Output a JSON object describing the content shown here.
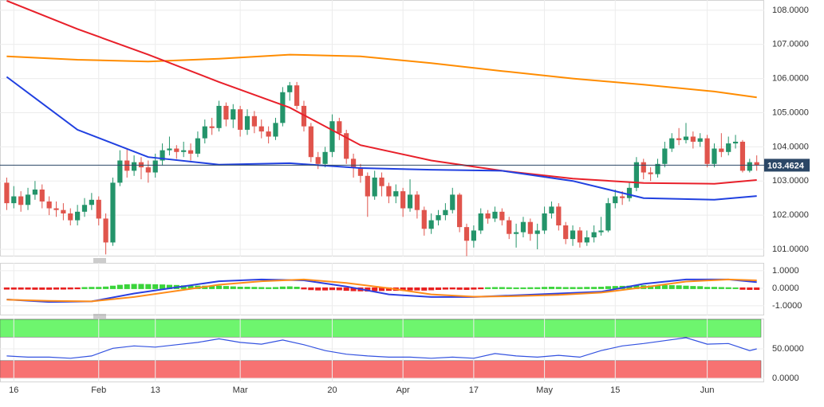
{
  "chart_data": [
    {
      "type": "candlestick",
      "xlim": [
        -0.95,
        107.05
      ],
      "xticks": [
        {
          "value": 1,
          "label": "16"
        },
        {
          "value": 13,
          "label": "Feb"
        },
        {
          "value": 21,
          "label": "13"
        },
        {
          "value": 33,
          "label": "Mar"
        },
        {
          "value": 46,
          "label": "20"
        },
        {
          "value": 56,
          "label": "Apr"
        },
        {
          "value": 66,
          "label": "17"
        },
        {
          "value": 76,
          "label": "May"
        },
        {
          "value": 86,
          "label": "15"
        },
        {
          "value": 99,
          "label": "Jun"
        }
      ],
      "ylim": [
        100.79,
        108.3
      ],
      "yticks": [
        {
          "value": 108,
          "label": "108.0000"
        },
        {
          "value": 107,
          "label": "107.0000"
        },
        {
          "value": 106,
          "label": "106.0000"
        },
        {
          "value": 105,
          "label": "105.0000"
        },
        {
          "value": 104,
          "label": "104.0000"
        },
        {
          "value": 103,
          "label": "103.0000"
        },
        {
          "value": 102,
          "label": "102.0000"
        },
        {
          "value": 101,
          "label": "101.0000"
        }
      ],
      "grid": true,
      "up_color": "#23946a",
      "down_color": "#e0544c",
      "open": [
        102.95,
        102.35,
        102.55,
        102.3,
        102.6,
        102.75,
        102.4,
        102.2,
        102.15,
        102.05,
        101.85,
        102.1,
        102.3,
        102.45,
        101.9,
        101.2,
        102.95,
        103.6,
        103.3,
        103.55,
        103.4,
        103.25,
        103.6,
        103.9,
        103.95,
        103.85,
        103.9,
        103.8,
        104.25,
        104.6,
        104.55,
        105.2,
        104.8,
        105.1,
        104.5,
        104.9,
        104.6,
        104.45,
        104.3,
        104.7,
        105.6,
        105.8,
        105.2,
        104.6,
        103.7,
        103.5,
        103.85,
        104.75,
        104.4,
        103.65,
        103.4,
        103.15,
        102.55,
        103.1,
        102.85,
        102.55,
        102.7,
        102.2,
        102.6,
        102.15,
        101.6,
        101.85,
        102.0,
        102.15,
        102.6,
        101.65,
        101.25,
        101.55,
        102.05,
        101.9,
        102.1,
        101.85,
        101.45,
        101.5,
        101.8,
        101.45,
        101.55,
        102.05,
        102.25,
        101.7,
        101.3,
        101.55,
        101.2,
        101.35,
        101.5,
        101.55,
        102.35,
        102.55,
        102.5,
        102.8,
        103.55,
        103.25,
        103.2,
        103.5,
        103.95,
        104.25,
        104.2,
        104.3,
        104.15,
        104.25,
        103.5,
        103.95,
        103.85,
        104.1,
        104.15,
        103.3,
        103.55
      ],
      "high": [
        103.1,
        102.85,
        102.7,
        102.8,
        103.0,
        102.9,
        102.55,
        102.4,
        102.35,
        102.2,
        102.3,
        102.5,
        102.65,
        102.55,
        102.05,
        103.1,
        103.9,
        103.95,
        103.75,
        103.7,
        103.6,
        103.8,
        104.1,
        104.3,
        104.05,
        104.15,
        104.1,
        104.45,
        104.8,
        104.85,
        105.35,
        105.3,
        105.25,
        105.2,
        105.1,
        105.05,
        104.8,
        104.6,
        104.85,
        105.75,
        105.9,
        105.9,
        105.35,
        104.7,
        103.85,
        104.0,
        104.95,
        104.85,
        104.5,
        103.8,
        103.5,
        103.25,
        103.3,
        103.25,
        102.95,
        102.9,
        102.8,
        103.05,
        102.7,
        102.25,
        102.05,
        102.15,
        102.35,
        102.8,
        102.65,
        101.75,
        101.7,
        102.2,
        102.15,
        102.25,
        102.2,
        101.95,
        101.75,
        101.95,
        101.9,
        101.75,
        102.25,
        102.4,
        102.35,
        101.8,
        101.7,
        101.65,
        101.55,
        101.7,
        101.95,
        102.5,
        102.75,
        102.7,
        102.95,
        103.7,
        103.65,
        103.4,
        103.65,
        104.15,
        104.4,
        104.55,
        104.7,
        104.45,
        104.4,
        104.35,
        104.1,
        104.4,
        104.3,
        104.35,
        104.2,
        103.65,
        103.75
      ],
      "low": [
        102.15,
        102.2,
        102.1,
        102.15,
        102.45,
        102.2,
        102.0,
        101.95,
        101.85,
        101.7,
        101.7,
        101.95,
        102.15,
        101.7,
        100.85,
        101.1,
        102.85,
        103.1,
        103.15,
        103.05,
        102.95,
        103.1,
        103.45,
        103.75,
        103.65,
        103.7,
        103.6,
        103.7,
        104.1,
        104.35,
        104.45,
        104.6,
        104.55,
        104.3,
        104.35,
        104.4,
        104.25,
        104.1,
        104.2,
        104.6,
        105.35,
        105.1,
        104.45,
        103.55,
        103.35,
        103.4,
        103.7,
        104.2,
        103.5,
        103.1,
        102.95,
        101.95,
        102.45,
        102.55,
        102.35,
        102.35,
        101.95,
        102.1,
        101.9,
        101.4,
        101.45,
        101.7,
        101.85,
        102.05,
        101.5,
        100.8,
        101.05,
        101.45,
        101.75,
        101.8,
        101.7,
        101.3,
        101.05,
        101.35,
        101.25,
        101.0,
        101.45,
        101.9,
        101.55,
        101.15,
        101.1,
        101.05,
        101.1,
        101.2,
        101.4,
        101.5,
        102.2,
        102.3,
        102.4,
        102.7,
        103.05,
        103.0,
        103.1,
        103.4,
        103.85,
        104.05,
        104.1,
        103.95,
        104.0,
        103.4,
        103.4,
        103.7,
        103.75,
        103.95,
        103.25,
        103.25,
        103.3
      ],
      "close": [
        102.35,
        102.55,
        102.3,
        102.6,
        102.75,
        102.4,
        102.2,
        102.15,
        102.05,
        101.85,
        102.1,
        102.3,
        102.45,
        101.9,
        101.2,
        102.95,
        103.6,
        103.3,
        103.55,
        103.4,
        103.25,
        103.6,
        103.9,
        103.95,
        103.85,
        103.9,
        103.8,
        104.25,
        104.6,
        104.55,
        105.2,
        104.8,
        105.1,
        104.5,
        104.9,
        104.6,
        104.45,
        104.3,
        104.7,
        105.6,
        105.8,
        105.2,
        104.6,
        103.7,
        103.5,
        103.85,
        104.75,
        104.4,
        103.65,
        103.4,
        103.15,
        102.55,
        103.1,
        102.85,
        102.55,
        102.7,
        102.2,
        102.6,
        102.15,
        101.6,
        101.85,
        102.0,
        102.15,
        102.6,
        101.65,
        101.25,
        101.55,
        102.05,
        101.9,
        102.1,
        101.85,
        101.45,
        101.5,
        101.8,
        101.45,
        101.55,
        102.05,
        102.25,
        101.7,
        101.3,
        101.55,
        101.2,
        101.35,
        101.5,
        101.55,
        102.35,
        102.55,
        102.5,
        102.8,
        103.55,
        103.25,
        103.2,
        103.5,
        103.95,
        104.25,
        104.2,
        104.3,
        104.15,
        104.25,
        103.5,
        103.95,
        103.85,
        104.1,
        104.15,
        103.3,
        103.55,
        103.46
      ],
      "series": [
        {
          "color": "#ff8c00",
          "x": [
            0,
            10,
            20,
            30,
            40,
            50,
            60,
            70,
            80,
            90,
            100,
            106
          ],
          "values": [
            106.65,
            106.55,
            106.5,
            106.58,
            106.7,
            106.65,
            106.45,
            106.22,
            106.0,
            105.82,
            105.62,
            105.45
          ]
        },
        {
          "color": "#e8202a",
          "x": [
            0,
            10,
            20,
            30,
            40,
            50,
            60,
            70,
            80,
            90,
            100,
            106
          ],
          "values": [
            108.28,
            107.45,
            106.7,
            105.9,
            105.15,
            104.05,
            103.6,
            103.3,
            103.07,
            102.94,
            102.92,
            103.03
          ]
        },
        {
          "color": "#2040e0",
          "x": [
            0,
            10,
            20,
            30,
            40,
            50,
            60,
            70,
            80,
            90,
            100,
            106
          ],
          "values": [
            106.05,
            104.5,
            103.7,
            103.48,
            103.52,
            103.38,
            103.33,
            103.3,
            103.0,
            102.5,
            102.45,
            102.56
          ]
        }
      ],
      "last_price": 103.4624,
      "last_price_color": "#2b4766"
    },
    {
      "type": "macd",
      "ylim": [
        -1.55,
        1.45
      ],
      "yticks": [
        {
          "value": 1,
          "label": "1.0000"
        },
        {
          "value": 0,
          "label": "0.0000"
        },
        {
          "value": -1,
          "label": "-1.0000"
        }
      ],
      "grid": true,
      "series": [
        {
          "color": "#2c3fe0",
          "x": [
            0,
            6,
            12,
            18,
            24,
            30,
            36,
            42,
            48,
            54,
            60,
            66,
            72,
            78,
            84,
            90,
            96,
            102,
            106
          ],
          "values": [
            -0.64,
            -0.78,
            -0.75,
            -0.3,
            0.05,
            0.4,
            0.5,
            0.45,
            0.1,
            -0.35,
            -0.5,
            -0.5,
            -0.4,
            -0.3,
            -0.2,
            0.25,
            0.5,
            0.5,
            0.35
          ]
        },
        {
          "color": "#ff8c1a",
          "x": [
            0,
            6,
            12,
            18,
            24,
            30,
            36,
            42,
            48,
            54,
            60,
            66,
            72,
            78,
            84,
            90,
            96,
            102,
            106
          ],
          "values": [
            -0.65,
            -0.72,
            -0.75,
            -0.5,
            -0.15,
            0.2,
            0.4,
            0.5,
            0.3,
            0.0,
            -0.35,
            -0.48,
            -0.45,
            -0.38,
            -0.25,
            0.05,
            0.38,
            0.5,
            0.45
          ]
        }
      ],
      "histogram": {
        "up_color": "#3ad43a",
        "down_color": "#e82020",
        "values": [
          -0.03,
          -0.03,
          -0.03,
          -0.03,
          -0.04,
          -0.04,
          -0.04,
          -0.03,
          -0.03,
          -0.02,
          -0.01,
          0.02,
          0.03,
          0.03,
          0.05,
          0.1,
          0.15,
          0.18,
          0.2,
          0.2,
          0.19,
          0.18,
          0.17,
          0.15,
          0.14,
          0.12,
          0.1,
          0.1,
          0.1,
          0.09,
          0.1,
          0.08,
          0.06,
          0.04,
          0.04,
          0.03,
          0.02,
          0.01,
          0.02,
          0.05,
          0.06,
          0.04,
          -0.02,
          -0.06,
          -0.08,
          -0.08,
          -0.06,
          -0.07,
          -0.1,
          -0.12,
          -0.13,
          -0.14,
          -0.12,
          -0.11,
          -0.1,
          -0.1,
          -0.1,
          -0.08,
          -0.08,
          -0.09,
          -0.07,
          -0.05,
          -0.03,
          -0.02,
          -0.04,
          -0.05,
          -0.03,
          -0.01,
          0.01,
          0.02,
          0.02,
          0.01,
          0.0,
          0.0,
          0.01,
          0.01,
          0.03,
          0.04,
          0.03,
          0.02,
          0.02,
          0.02,
          0.03,
          0.03,
          0.04,
          0.07,
          0.08,
          0.09,
          0.1,
          0.13,
          0.12,
          0.11,
          0.12,
          0.13,
          0.13,
          0.12,
          0.1,
          0.08,
          0.07,
          0.03,
          0.03,
          0.02,
          0.01,
          0.0,
          -0.04,
          -0.05,
          -0.05
        ]
      }
    },
    {
      "type": "line",
      "ylim": [
        -6.8,
        101.4
      ],
      "yticks": [
        {
          "value": 50,
          "label": "50.0000"
        },
        {
          "value": 0,
          "label": "0.0000"
        }
      ],
      "grid": true,
      "bands": [
        {
          "range": [
            70,
            100
          ],
          "color": "#6ef56e"
        },
        {
          "range": [
            0,
            30
          ],
          "color": "#f77272"
        }
      ],
      "series": [
        {
          "color": "#3352e0",
          "x": [
            0,
            3,
            6,
            9,
            12,
            15,
            18,
            21,
            24,
            27,
            30,
            33,
            36,
            39,
            42,
            45,
            48,
            51,
            54,
            57,
            60,
            63,
            66,
            69,
            72,
            75,
            78,
            81,
            84,
            87,
            90,
            93,
            96,
            99,
            102,
            105,
            106
          ],
          "values": [
            38,
            36,
            36,
            34,
            38,
            51,
            55,
            53,
            57,
            61,
            67,
            61,
            58,
            65,
            57,
            47,
            41,
            38,
            36,
            36,
            34,
            36,
            34,
            42,
            38,
            36,
            39,
            36,
            47,
            55,
            59,
            64,
            69,
            58,
            59,
            47,
            50
          ]
        }
      ]
    }
  ]
}
